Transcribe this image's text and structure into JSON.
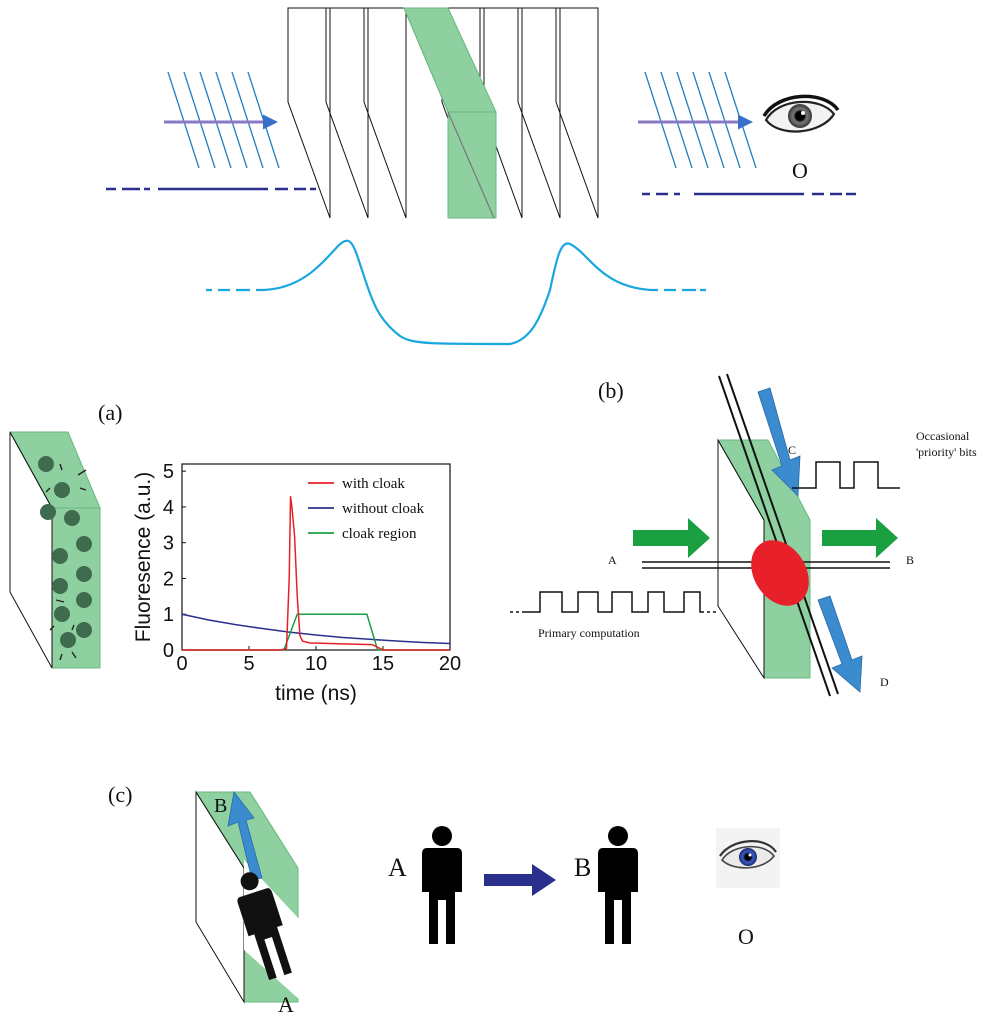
{
  "top": {
    "observer_label": "O"
  },
  "panel_a": {
    "label": "(a)"
  },
  "panel_b": {
    "label": "(b)",
    "label_a": "A",
    "label_b": "B",
    "label_c": "C",
    "label_d": "D",
    "priority_text_1": "Occasional",
    "priority_text_2": "'priority' bits",
    "primary_text": "Primary computation"
  },
  "panel_c": {
    "label": "(c)",
    "slab_label_b": "B",
    "slab_label_a": "A",
    "person_a_label": "A",
    "person_b_label": "B",
    "observer_label": "O"
  },
  "colors": {
    "cloak_green": "#8fd0a0",
    "light_blue": "#1aa7e0",
    "dark_blue": "#2a2f8c",
    "arrow_green": "#1aa040",
    "arrow_blue": "#3a8ccf",
    "red": "#e8202a"
  },
  "chart_data": {
    "type": "line",
    "xlabel": "time (ns)",
    "ylabel": "Fluoresence (a.u.)",
    "xlim": [
      0,
      20
    ],
    "ylim": [
      0,
      5.2
    ],
    "xticks": [
      0,
      5,
      10,
      15,
      20
    ],
    "yticks": [
      0,
      1,
      2,
      3,
      4,
      5
    ],
    "legend_position": "top-right",
    "series": [
      {
        "name": "with cloak",
        "color": "#e8202a",
        "x": [
          0,
          7.4,
          7.8,
          8.0,
          8.1,
          8.2,
          8.4,
          8.6,
          8.8,
          9.0,
          9.5,
          11,
          13,
          14.2,
          15,
          20
        ],
        "y": [
          0,
          0,
          0.05,
          2.0,
          4.3,
          4.0,
          3.2,
          1.5,
          0.4,
          0.25,
          0.2,
          0.18,
          0.16,
          0.15,
          0,
          0
        ]
      },
      {
        "name": "without cloak",
        "color": "#2a2f8c",
        "x": [
          0,
          2,
          4,
          6,
          8,
          10,
          12,
          14,
          16,
          18,
          20
        ],
        "y": [
          1.0,
          0.84,
          0.71,
          0.6,
          0.5,
          0.42,
          0.35,
          0.3,
          0.25,
          0.21,
          0.18
        ]
      },
      {
        "name": "cloak region",
        "color": "#1aa040",
        "x": [
          0,
          7.6,
          8.1,
          8.6,
          13.8,
          14.2,
          14.6,
          20
        ],
        "y": [
          0,
          0,
          0.5,
          1.0,
          1.0,
          0.5,
          0,
          0
        ]
      }
    ]
  }
}
